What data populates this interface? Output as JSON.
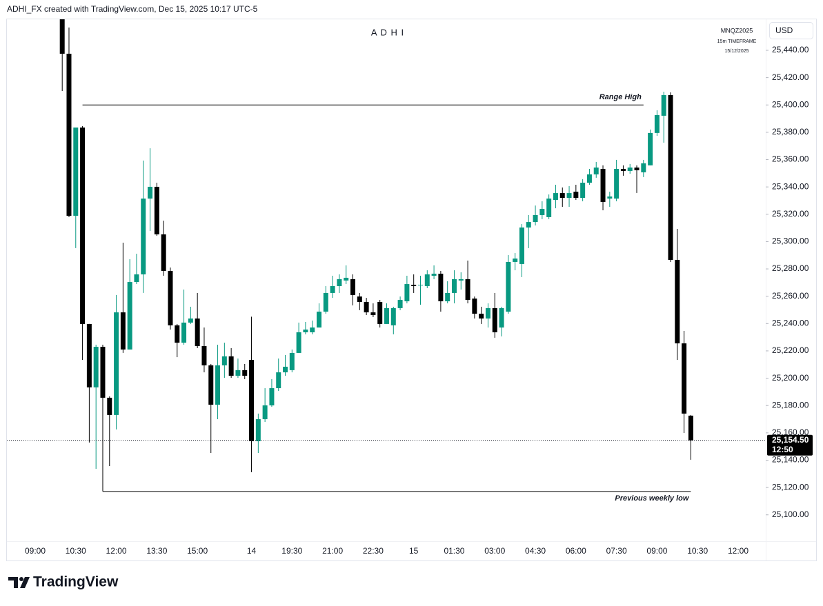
{
  "header": {
    "text": "ADHI_FX created with TradingView.com, Dec 15, 2025 10:17 UTC-5"
  },
  "chart_data": {
    "type": "candlestick",
    "title": "A D H I",
    "symbol_info": [
      "MNQZ2025",
      "15m TIMEFRAME",
      "15/12/2025"
    ],
    "currency": "USD",
    "categories": [
      "09:00",
      null,
      null,
      null,
      null,
      null,
      "10:30",
      null,
      null,
      null,
      null,
      null,
      "12:00",
      null,
      null,
      null,
      null,
      null,
      "13:30",
      null,
      null,
      null,
      null,
      null,
      "15:00",
      null,
      null,
      null,
      null,
      null,
      null,
      null,
      "14",
      null,
      null,
      null,
      null,
      null,
      "19:30",
      null,
      null,
      null,
      null,
      null,
      "21:00",
      null,
      null,
      null,
      null,
      null,
      "22:30",
      null,
      null,
      null,
      null,
      null,
      "15",
      null,
      null,
      null,
      null,
      null,
      "01:30",
      null,
      null,
      null,
      null,
      null,
      "03:00",
      null,
      null,
      null,
      null,
      null,
      "04:30",
      null,
      null,
      null,
      null,
      null,
      "06:00",
      null,
      null,
      null,
      null,
      null,
      "07:30",
      null,
      null,
      null,
      null,
      null,
      "09:00",
      null,
      null,
      null,
      null,
      null,
      "10:30",
      null,
      null,
      null,
      null,
      null,
      "12:00"
    ],
    "open": [
      null,
      null,
      null,
      null,
      25462.7,
      25437.5,
      25318.9,
      25383.5,
      25239.7,
      25193.3,
      25223,
      25185.7,
      25173.1,
      25248.2,
      25221,
      25270.4,
      25276,
      25331.5,
      25340.1,
      25305.3,
      25278.5,
      25238.7,
      25226,
      25240.7,
      25243.7,
      25223.5,
      25209.4,
      25180.6,
      25209.4,
      25216,
      25201.8,
      25205.9,
      25213.4,
      25153.9,
      25170,
      25180.1,
      25192.7,
      25204.3,
      25205.9,
      25218.5,
      25233.6,
      25233.6,
      25237.1,
      25248.7,
      25262.4,
      25267.4,
      25271.5,
      25272.5,
      25259.8,
      25255.8,
      25248.2,
      25255.8,
      25239.7,
      25238.7,
      25251.3,
      25256.3,
      25268.4,
      25268.4,
      25267.4,
      25275,
      25276.5,
      25256.3,
      25262.4,
      25271.5,
      25272.5,
      25258.3,
      25247.2,
      25243.7,
      25251.3,
      25237.1,
      25248.7,
      25285.1,
      25283.6,
      25310.3,
      25314.3,
      25319.4,
      25317.9,
      25330.5,
      25335.5,
      25332,
      25336.5,
      25332,
      25343.1,
      25349.2,
      25353.2,
      25331.5,
      25331.5,
      25353.2,
      25351.7,
      25354.2,
      25350.7,
      25355.8,
      25379.5,
      25392.1,
      25407.2,
      25286.6,
      25225.5,
      25172.6,
      null,
      null,
      null,
      null,
      null,
      null,
      null
    ],
    "high": [
      null,
      null,
      null,
      null,
      25462.7,
      25456.7,
      25383.5,
      25384.5,
      25239.7,
      25224.5,
      25224.5,
      25186.7,
      25260.9,
      25299.2,
      25287.1,
      25291.1,
      25359.3,
      25368.3,
      25343.1,
      25315.3,
      25281,
      25239.7,
      25264.9,
      25252.3,
      25262.4,
      25237.1,
      25210.4,
      25224.5,
      25226,
      25222,
      25214.4,
      25210.4,
      25245,
      25174.1,
      25192.7,
      25199.3,
      25214.4,
      25217,
      25221,
      25240.7,
      25241.2,
      25242.2,
      25254.8,
      25267.4,
      25275,
      25276,
      25282.6,
      25276,
      25262.4,
      25258.8,
      25254.8,
      25257.3,
      25254.8,
      25252.3,
      25259.8,
      25275,
      25276,
      25275,
      25279,
      25282.6,
      25278.5,
      25271,
      25279,
      25277.5,
      25286.1,
      25259.8,
      25252.3,
      25254.8,
      25262.4,
      25252.3,
      25290.1,
      25291.6,
      25312.8,
      25319.4,
      25326.4,
      25329.5,
      25334.5,
      25341.6,
      25339.6,
      25340.6,
      25341.6,
      25345.7,
      25353.2,
      25358.3,
      25355.8,
      25336.5,
      25359.8,
      25355.8,
      25356.8,
      25355.8,
      25359.8,
      25382,
      25396.1,
      25409.7,
      25409.2,
      25309.3,
      25234.6,
      25173.1,
      null,
      null,
      null,
      null,
      null,
      null,
      null
    ],
    "low": [
      null,
      null,
      null,
      null,
      25410.2,
      25317.9,
      25295.2,
      25213.4,
      25152.9,
      25133.7,
      25117.1,
      25135.7,
      25162.5,
      25218.5,
      25221,
      25268.9,
      25262.4,
      25307.8,
      25304.2,
      25275,
      25235.6,
      25215.4,
      25224.5,
      25239.7,
      25222,
      25204.3,
      25145.3,
      25170,
      25200.3,
      25200.3,
      25200.3,
      25199.3,
      25131.2,
      25145.3,
      25168,
      25179.1,
      25190.7,
      25201.8,
      25204.3,
      25218.5,
      25232.1,
      25232.1,
      25237.1,
      25247.2,
      25258.8,
      25262.4,
      25268.9,
      25253.3,
      25249.8,
      25246.2,
      25244.7,
      25237.1,
      25239.7,
      25232.1,
      25249.8,
      25254.8,
      25262.4,
      25253.8,
      25265.9,
      25272.5,
      25248.7,
      25254.8,
      25254.8,
      25264.9,
      25254.8,
      25243.7,
      25239.7,
      25237.1,
      25229.6,
      25230.6,
      25247.2,
      25279,
      25274,
      25295.2,
      25311.8,
      25316.4,
      25316.4,
      25324.4,
      25325.4,
      25325.4,
      25330.5,
      25329.5,
      25341.6,
      25346.7,
      25322.9,
      25325.4,
      25329.5,
      25348.2,
      25349.7,
      25335.6,
      25347.2,
      25355.8,
      25377.4,
      25372.4,
      25285.1,
      25213.4,
      25159.9,
      25140.3,
      null,
      null,
      null,
      null,
      null,
      null,
      null
    ],
    "close": [
      null,
      null,
      null,
      null,
      25437.5,
      25318.9,
      25383.5,
      25239.7,
      25193.3,
      25223,
      25185.7,
      25173.1,
      25248.2,
      25221,
      25270.4,
      25276,
      25331.5,
      25340.1,
      25305.3,
      25278.5,
      25238.7,
      25226,
      25240.7,
      25243.7,
      25223.5,
      25209.4,
      25180.6,
      25209.4,
      25216,
      25201.8,
      25205.9,
      25201.8,
      25153.9,
      25170,
      25180.1,
      25192.7,
      25204.3,
      25208.4,
      25218.5,
      25233.6,
      25235.6,
      25237.1,
      25248.7,
      25262.4,
      25267.4,
      25272.5,
      25273.5,
      25260.9,
      25255.8,
      25248.2,
      25246.2,
      25239.7,
      25251.3,
      25251.3,
      25257.3,
      25268.9,
      25267.4,
      25268.4,
      25276,
      25276.5,
      25256.3,
      25262.4,
      25272.5,
      25272.5,
      25257.3,
      25247.2,
      25243.7,
      25251.3,
      25233.6,
      25251.3,
      25285.1,
      25287.6,
      25310.3,
      25314.3,
      25319.4,
      25323.9,
      25331.5,
      25335.5,
      25332,
      25335.5,
      25332,
      25343.1,
      25349.2,
      25354.2,
      25329,
      25333,
      25353.2,
      25351.7,
      25354.2,
      25352.2,
      25357.3,
      25379.5,
      25392.6,
      25407.2,
      25286.6,
      25225.5,
      25174.1,
      25154.5,
      null,
      null,
      null,
      null,
      null,
      null,
      null
    ],
    "up_color": "#089981",
    "down_color": "#000000",
    "ylim": [
      25080.7,
      25462.7
    ],
    "yticks": [
      {
        "value": 25100,
        "label": "25,100.00"
      },
      {
        "value": 25120,
        "label": "25,120.00"
      },
      {
        "value": 25140,
        "label": "25,140.00"
      },
      {
        "value": 25160,
        "label": "25,160.00"
      },
      {
        "value": 25180,
        "label": "25,180.00"
      },
      {
        "value": 25200,
        "label": "25,200.00"
      },
      {
        "value": 25220,
        "label": "25,220.00"
      },
      {
        "value": 25240,
        "label": "25,240.00"
      },
      {
        "value": 25260,
        "label": "25,260.00"
      },
      {
        "value": 25280,
        "label": "25,280.00"
      },
      {
        "value": 25300,
        "label": "25,300.00"
      },
      {
        "value": 25320,
        "label": "25,320.00"
      },
      {
        "value": 25340,
        "label": "25,340.00"
      },
      {
        "value": 25360,
        "label": "25,360.00"
      },
      {
        "value": 25380,
        "label": "25,380.00"
      },
      {
        "value": 25400,
        "label": "25,400.00"
      },
      {
        "value": 25420,
        "label": "25,420.00"
      },
      {
        "value": 25440,
        "label": "25,440.00"
      }
    ],
    "annotations": [
      {
        "text": "Range High",
        "value": 25400,
        "from": 7,
        "to": 90
      },
      {
        "text": "Previous weekly low",
        "value": 25117.1,
        "from": 10,
        "to": 97
      }
    ],
    "last_price": {
      "value": 25154.5,
      "label": "25,154.50"
    },
    "countdown": "12:50"
  },
  "footer": {
    "brand": "TradingView"
  }
}
